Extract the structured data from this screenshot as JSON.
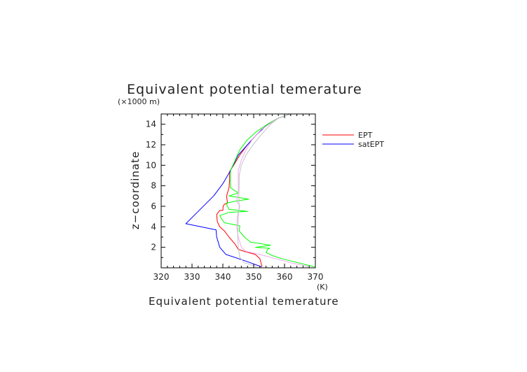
{
  "chart_data": {
    "type": "line",
    "title": "Equivalent potential temerature",
    "xlabel": "Equivalent potential temerature",
    "ylabel": "z−coordinate",
    "xunit": "(K)",
    "yunit": "(×1000 m)",
    "xlim": [
      320,
      370
    ],
    "ylim": [
      0,
      15
    ],
    "xticks": [
      320,
      330,
      340,
      350,
      360,
      370
    ],
    "yticks": [
      2,
      4,
      6,
      8,
      10,
      12,
      14
    ],
    "grid": false,
    "legend_position": "right",
    "series": [
      {
        "name": "EPT",
        "color": "#ff0000",
        "points": [
          [
            352.7,
            0.1
          ],
          [
            352,
            0.9
          ],
          [
            350.5,
            1.3
          ],
          [
            347,
            1.6
          ],
          [
            345,
            1.8
          ],
          [
            344,
            2.3
          ],
          [
            342,
            3
          ],
          [
            340.5,
            3.6
          ],
          [
            339,
            4
          ],
          [
            338.2,
            4.5
          ],
          [
            338,
            5.2
          ],
          [
            339,
            5.6
          ],
          [
            340,
            5.6
          ],
          [
            340.1,
            6
          ],
          [
            340.5,
            6.2
          ],
          [
            341.5,
            6.3
          ],
          [
            341.2,
            7
          ],
          [
            342,
            7.8
          ],
          [
            342.2,
            8.6
          ],
          [
            342.2,
            9.4
          ],
          [
            343.5,
            10
          ],
          [
            345.5,
            11
          ],
          [
            348,
            12
          ],
          [
            351,
            13
          ],
          [
            354.5,
            14
          ],
          [
            358,
            14.6
          ],
          [
            362,
            15
          ]
        ]
      },
      {
        "name": "satEPT",
        "color": "#0000ff",
        "points": [
          [
            352.5,
            0.1
          ],
          [
            347,
            0.7
          ],
          [
            341,
            1.3
          ],
          [
            339,
            2
          ],
          [
            338,
            3
          ],
          [
            337.8,
            3.7
          ],
          [
            328,
            4.3
          ],
          [
            332,
            5.5
          ],
          [
            337,
            7
          ],
          [
            340,
            8.2
          ],
          [
            342.5,
            9.5
          ],
          [
            345,
            11
          ],
          [
            348,
            12
          ],
          [
            351,
            13
          ],
          [
            354.5,
            14
          ],
          [
            358,
            14.6
          ],
          [
            362,
            15
          ]
        ]
      },
      {
        "name": "",
        "color": "#00ff00",
        "points": [
          [
            369.8,
            0.1
          ],
          [
            367,
            0.3
          ],
          [
            363,
            0.6
          ],
          [
            359,
            0.9
          ],
          [
            356,
            1.2
          ],
          [
            354,
            1.5
          ],
          [
            354.5,
            1.8
          ],
          [
            355.2,
            1.9
          ],
          [
            350.6,
            2
          ],
          [
            355.5,
            2.2
          ],
          [
            349,
            2.5
          ],
          [
            347,
            3
          ],
          [
            345.3,
            3.6
          ],
          [
            345.5,
            4.1
          ],
          [
            340.5,
            4.4
          ],
          [
            339.5,
            4.8
          ],
          [
            339,
            5.1
          ],
          [
            342,
            5.4
          ],
          [
            348,
            5.5
          ],
          [
            342,
            5.7
          ],
          [
            341,
            6.3
          ],
          [
            344,
            6.5
          ],
          [
            348.4,
            6.7
          ],
          [
            342,
            7
          ],
          [
            345,
            7.3
          ],
          [
            342.5,
            7.8
          ],
          [
            342.4,
            8.8
          ],
          [
            342.5,
            9.5
          ],
          [
            344,
            10.5
          ],
          [
            345.5,
            11.5
          ],
          [
            348,
            12.5
          ],
          [
            351,
            13.3
          ],
          [
            354.5,
            14
          ],
          [
            358,
            14.6
          ],
          [
            362,
            15
          ]
        ]
      },
      {
        "name": "",
        "color": "#f0a8f0",
        "points": [
          [
            368,
            0.1
          ],
          [
            362,
            0.5
          ],
          [
            357,
            0.9
          ],
          [
            352,
            1.3
          ],
          [
            347.5,
            1.6
          ],
          [
            346,
            2
          ],
          [
            345,
            3
          ],
          [
            344.5,
            4
          ],
          [
            344.7,
            5
          ],
          [
            345.5,
            6
          ],
          [
            344.5,
            6.5
          ],
          [
            345,
            7.5
          ],
          [
            345,
            8.5
          ],
          [
            345,
            9.5
          ],
          [
            346,
            10.5
          ],
          [
            347.5,
            11.5
          ],
          [
            349.5,
            12.5
          ],
          [
            352.5,
            13.5
          ],
          [
            355,
            14
          ],
          [
            358,
            14.6
          ],
          [
            362,
            15
          ]
        ]
      },
      {
        "name": "",
        "color": "#c4c4c4",
        "points": [
          [
            351,
            0.1
          ],
          [
            347,
            0.5
          ],
          [
            345.5,
            1
          ],
          [
            345,
            2
          ],
          [
            344.8,
            3
          ],
          [
            344.9,
            4
          ],
          [
            345,
            5
          ],
          [
            345.3,
            6
          ],
          [
            345.2,
            7
          ],
          [
            345.3,
            8
          ],
          [
            345.3,
            9
          ],
          [
            346,
            10
          ],
          [
            347.5,
            11
          ],
          [
            349.8,
            12
          ],
          [
            352.5,
            13
          ],
          [
            355.5,
            14
          ],
          [
            358,
            14.6
          ],
          [
            362,
            15
          ]
        ]
      }
    ]
  }
}
